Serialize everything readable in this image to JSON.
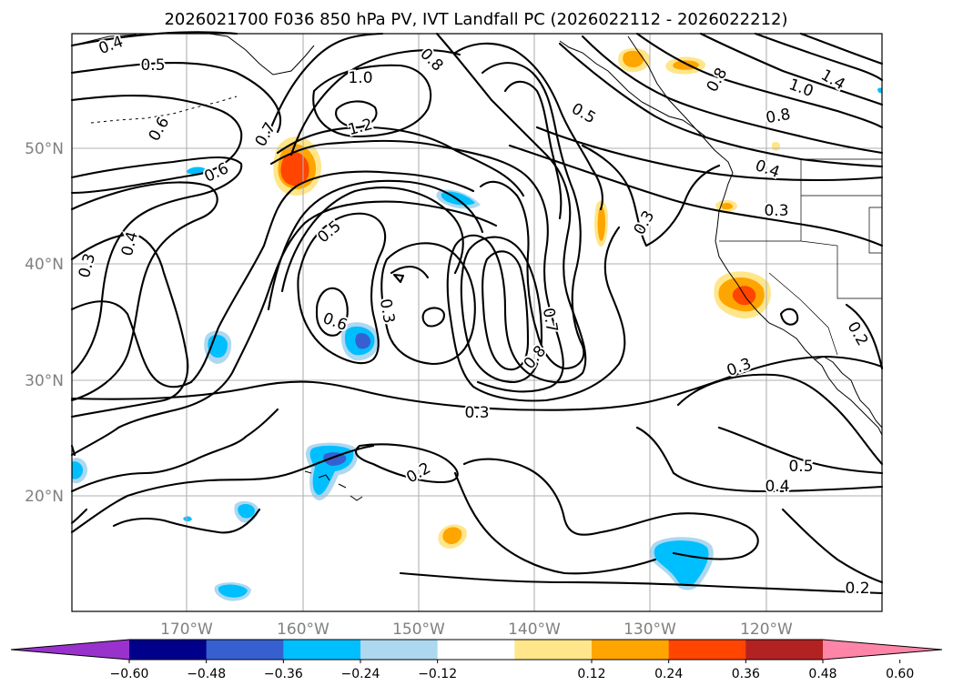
{
  "title": "2026021700 F036 850 hPa PV, IVT Landfall PC (2026022112 - 2026022212)",
  "axes": {
    "lon_labels": [
      "170°W",
      "160°W",
      "150°W",
      "140°W",
      "130°W",
      "120°W"
    ],
    "lat_labels": [
      "50°N",
      "40°N",
      "30°N",
      "20°N"
    ]
  },
  "colorbar": {
    "tick_labels": [
      "−0.60",
      "−0.48",
      "−0.36",
      "−0.24",
      "−0.12",
      "0.12",
      "0.24",
      "0.36",
      "0.48",
      "0.60"
    ],
    "colors": [
      "#9932cc",
      "#00008b",
      "#3660d0",
      "#00bfff",
      "#add8f0",
      "#ffffff",
      "#ffe68a",
      "#ffa500",
      "#ff4500",
      "#b22222",
      "#ff85a8"
    ]
  },
  "contour_labels": [
    "0.4",
    "0.5",
    "1.0",
    "0.8",
    "0.5",
    "0.6",
    "1.2",
    "0.7",
    "0.8",
    "1.4",
    "1.0",
    "0.8",
    "0.6",
    "0.4",
    "0.3",
    "0.4",
    "0.3",
    "0.5",
    "0.3",
    "0.6",
    "0.7",
    "0.8",
    "0.3",
    "0.3",
    "0.2",
    "0.3",
    "0.2",
    "0.5",
    "0.4",
    "0.2"
  ]
}
